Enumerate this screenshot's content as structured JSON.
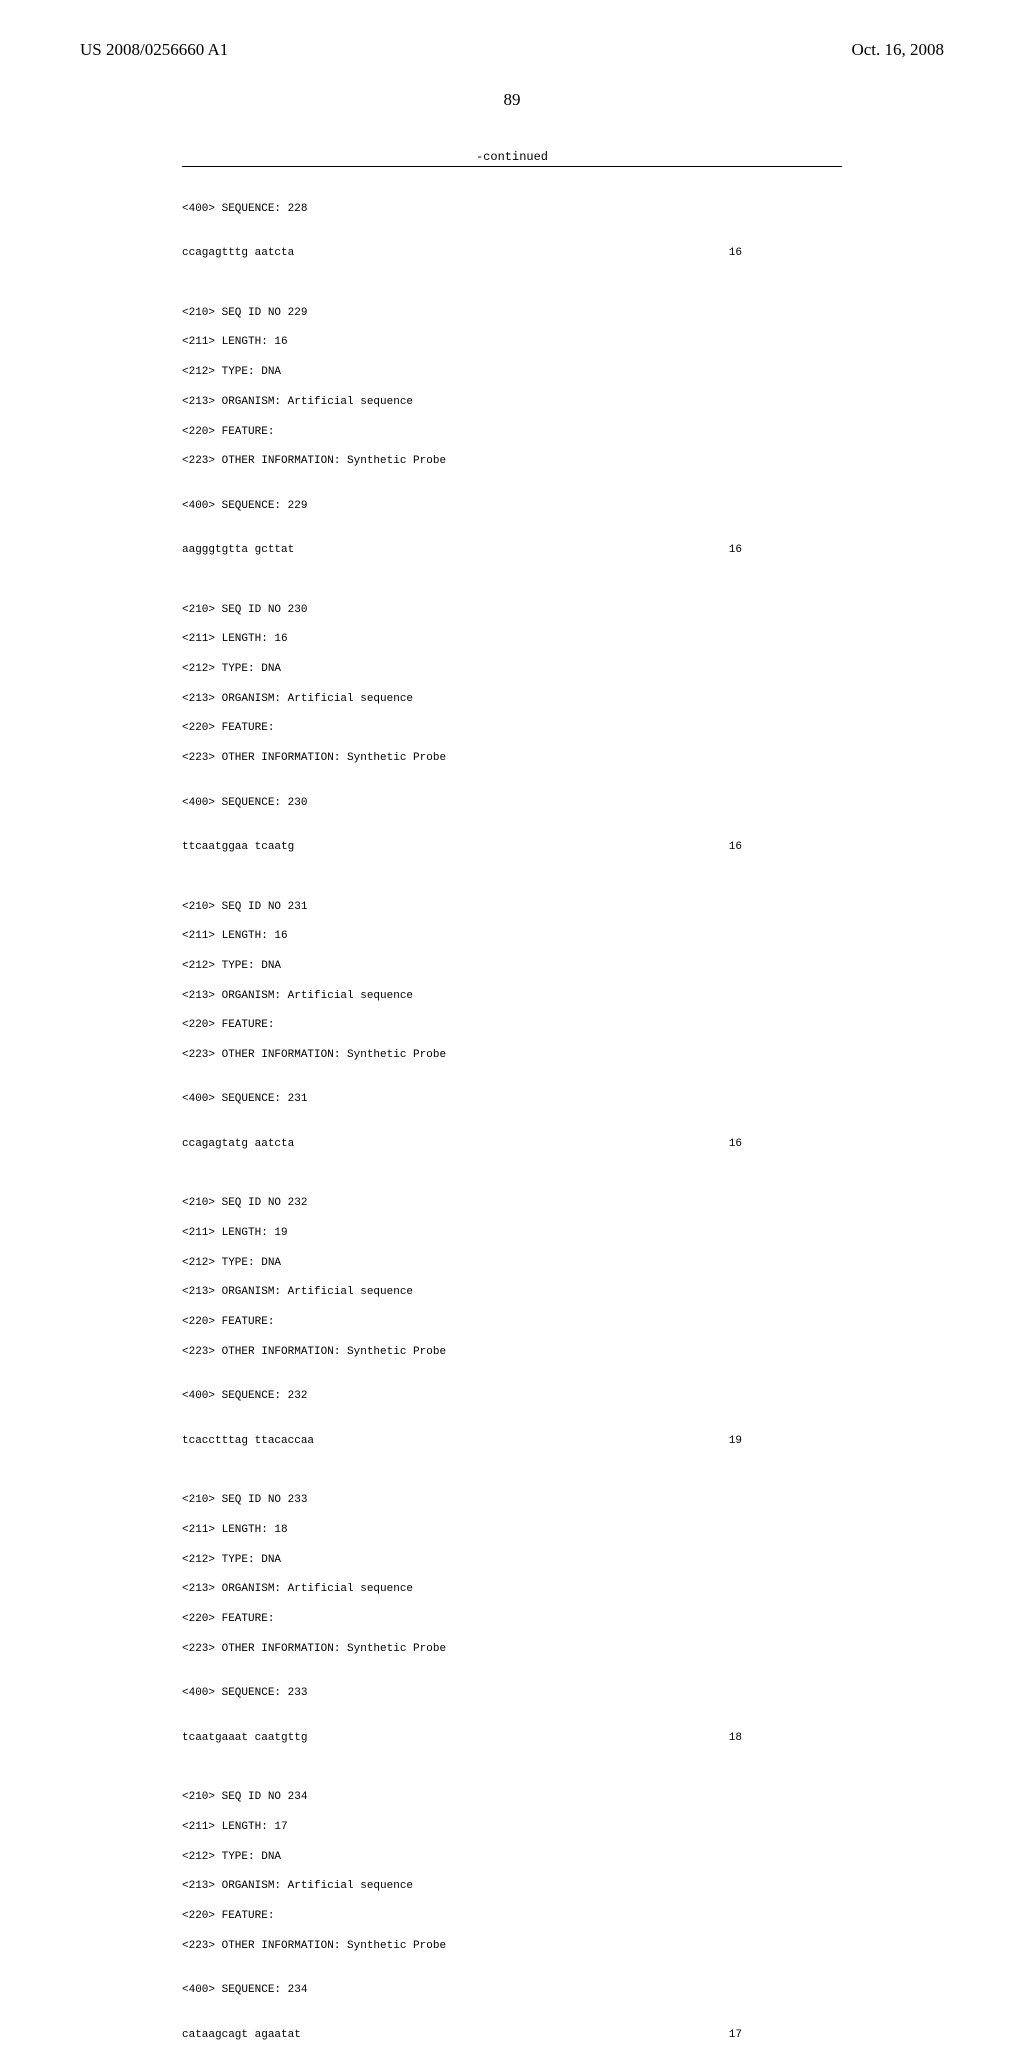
{
  "header": {
    "application_number": "US 2008/0256660 A1",
    "publication_date": "Oct. 16, 2008"
  },
  "page_number": "89",
  "continued_label": "-continued",
  "sequences": [
    {
      "seq_header": "<400> SEQUENCE: 228",
      "sequence_line": "ccagagtttg aatcta",
      "length_value": "16"
    },
    {
      "meta": [
        "<210> SEQ ID NO 229",
        "<211> LENGTH: 16",
        "<212> TYPE: DNA",
        "<213> ORGANISM: Artificial sequence",
        "<220> FEATURE:",
        "<223> OTHER INFORMATION: Synthetic Probe"
      ],
      "seq_header": "<400> SEQUENCE: 229",
      "sequence_line": "aagggtgtta gcttat",
      "length_value": "16"
    },
    {
      "meta": [
        "<210> SEQ ID NO 230",
        "<211> LENGTH: 16",
        "<212> TYPE: DNA",
        "<213> ORGANISM: Artificial sequence",
        "<220> FEATURE:",
        "<223> OTHER INFORMATION: Synthetic Probe"
      ],
      "seq_header": "<400> SEQUENCE: 230",
      "sequence_line": "ttcaatggaa tcaatg",
      "length_value": "16"
    },
    {
      "meta": [
        "<210> SEQ ID NO 231",
        "<211> LENGTH: 16",
        "<212> TYPE: DNA",
        "<213> ORGANISM: Artificial sequence",
        "<220> FEATURE:",
        "<223> OTHER INFORMATION: Synthetic Probe"
      ],
      "seq_header": "<400> SEQUENCE: 231",
      "sequence_line": "ccagagtatg aatcta",
      "length_value": "16"
    },
    {
      "meta": [
        "<210> SEQ ID NO 232",
        "<211> LENGTH: 19",
        "<212> TYPE: DNA",
        "<213> ORGANISM: Artificial sequence",
        "<220> FEATURE:",
        "<223> OTHER INFORMATION: Synthetic Probe"
      ],
      "seq_header": "<400> SEQUENCE: 232",
      "sequence_line": "tcacctttag ttacaccaa",
      "length_value": "19"
    },
    {
      "meta": [
        "<210> SEQ ID NO 233",
        "<211> LENGTH: 18",
        "<212> TYPE: DNA",
        "<213> ORGANISM: Artificial sequence",
        "<220> FEATURE:",
        "<223> OTHER INFORMATION: Synthetic Probe"
      ],
      "seq_header": "<400> SEQUENCE: 233",
      "sequence_line": "tcaatgaaat caatgttg",
      "length_value": "18"
    },
    {
      "meta": [
        "<210> SEQ ID NO 234",
        "<211> LENGTH: 17",
        "<212> TYPE: DNA",
        "<213> ORGANISM: Artificial sequence",
        "<220> FEATURE:",
        "<223> OTHER INFORMATION: Synthetic Probe"
      ],
      "seq_header": "<400> SEQUENCE: 234",
      "sequence_line": "cataagcagt agaatat",
      "length_value": "17"
    }
  ]
}
